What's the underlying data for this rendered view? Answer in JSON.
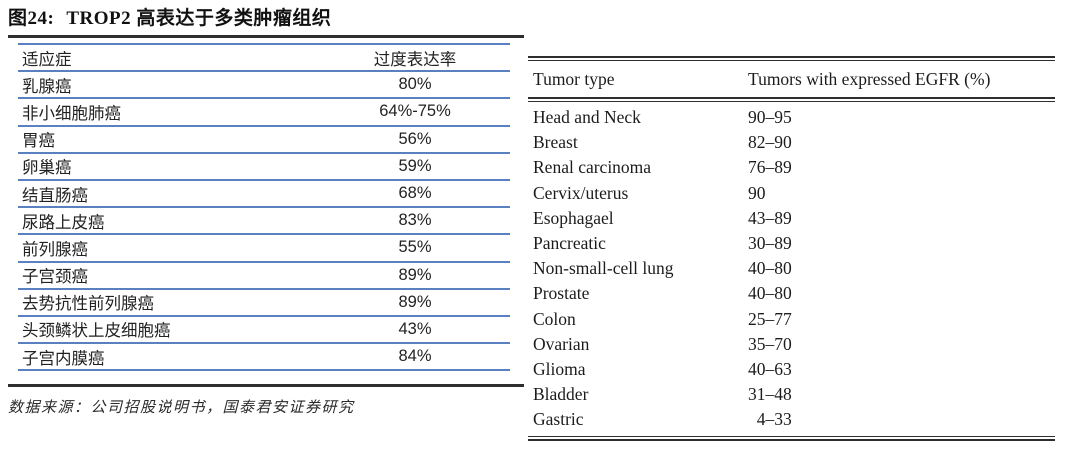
{
  "figure": {
    "label": "图24:",
    "title": "TROP2 高表达于多类肿瘤组织",
    "source": "数据来源：公司招股说明书，国泰君安证券研究"
  },
  "left_table": {
    "headers": {
      "indication": "适应症",
      "rate": "过度表达率"
    },
    "rows": [
      {
        "indication": "乳腺癌",
        "rate": "80%"
      },
      {
        "indication": "非小细胞肺癌",
        "rate": "64%-75%"
      },
      {
        "indication": "胃癌",
        "rate": "56%"
      },
      {
        "indication": "卵巢癌",
        "rate": "59%"
      },
      {
        "indication": "结直肠癌",
        "rate": "68%"
      },
      {
        "indication": "尿路上皮癌",
        "rate": "83%"
      },
      {
        "indication": "前列腺癌",
        "rate": "55%"
      },
      {
        "indication": "子宫颈癌",
        "rate": "89%"
      },
      {
        "indication": "去势抗性前列腺癌",
        "rate": "89%"
      },
      {
        "indication": "头颈鳞状上皮细胞癌",
        "rate": "43%"
      },
      {
        "indication": "子宫内膜癌",
        "rate": "84%"
      }
    ]
  },
  "right_table": {
    "headers": {
      "type": "Tumor type",
      "value": "Tumors with expressed EGFR (%)"
    },
    "rows": [
      {
        "type": "Head and Neck",
        "value": "90–95"
      },
      {
        "type": "Breast",
        "value": "82–90"
      },
      {
        "type": "Renal carcinoma",
        "value": "76–89"
      },
      {
        "type": "Cervix/uterus",
        "value": "90"
      },
      {
        "type": "Esophagael",
        "value": "43–89"
      },
      {
        "type": "Pancreatic",
        "value": "30–89"
      },
      {
        "type": "Non-small-cell lung",
        "value": "40–80"
      },
      {
        "type": "Prostate",
        "value": "40–80"
      },
      {
        "type": "Colon",
        "value": "25–77"
      },
      {
        "type": "Ovarian",
        "value": "35–70"
      },
      {
        "type": "Glioma",
        "value": "40–63"
      },
      {
        "type": "Bladder",
        "value": "31–48"
      },
      {
        "type": "Gastric",
        "value": " 4–33"
      }
    ]
  },
  "colors": {
    "table_line_blue": "#5b80c0",
    "dark_rule": "#2e2e2e",
    "text": "#1f1f1f",
    "background": "#ffffff"
  }
}
